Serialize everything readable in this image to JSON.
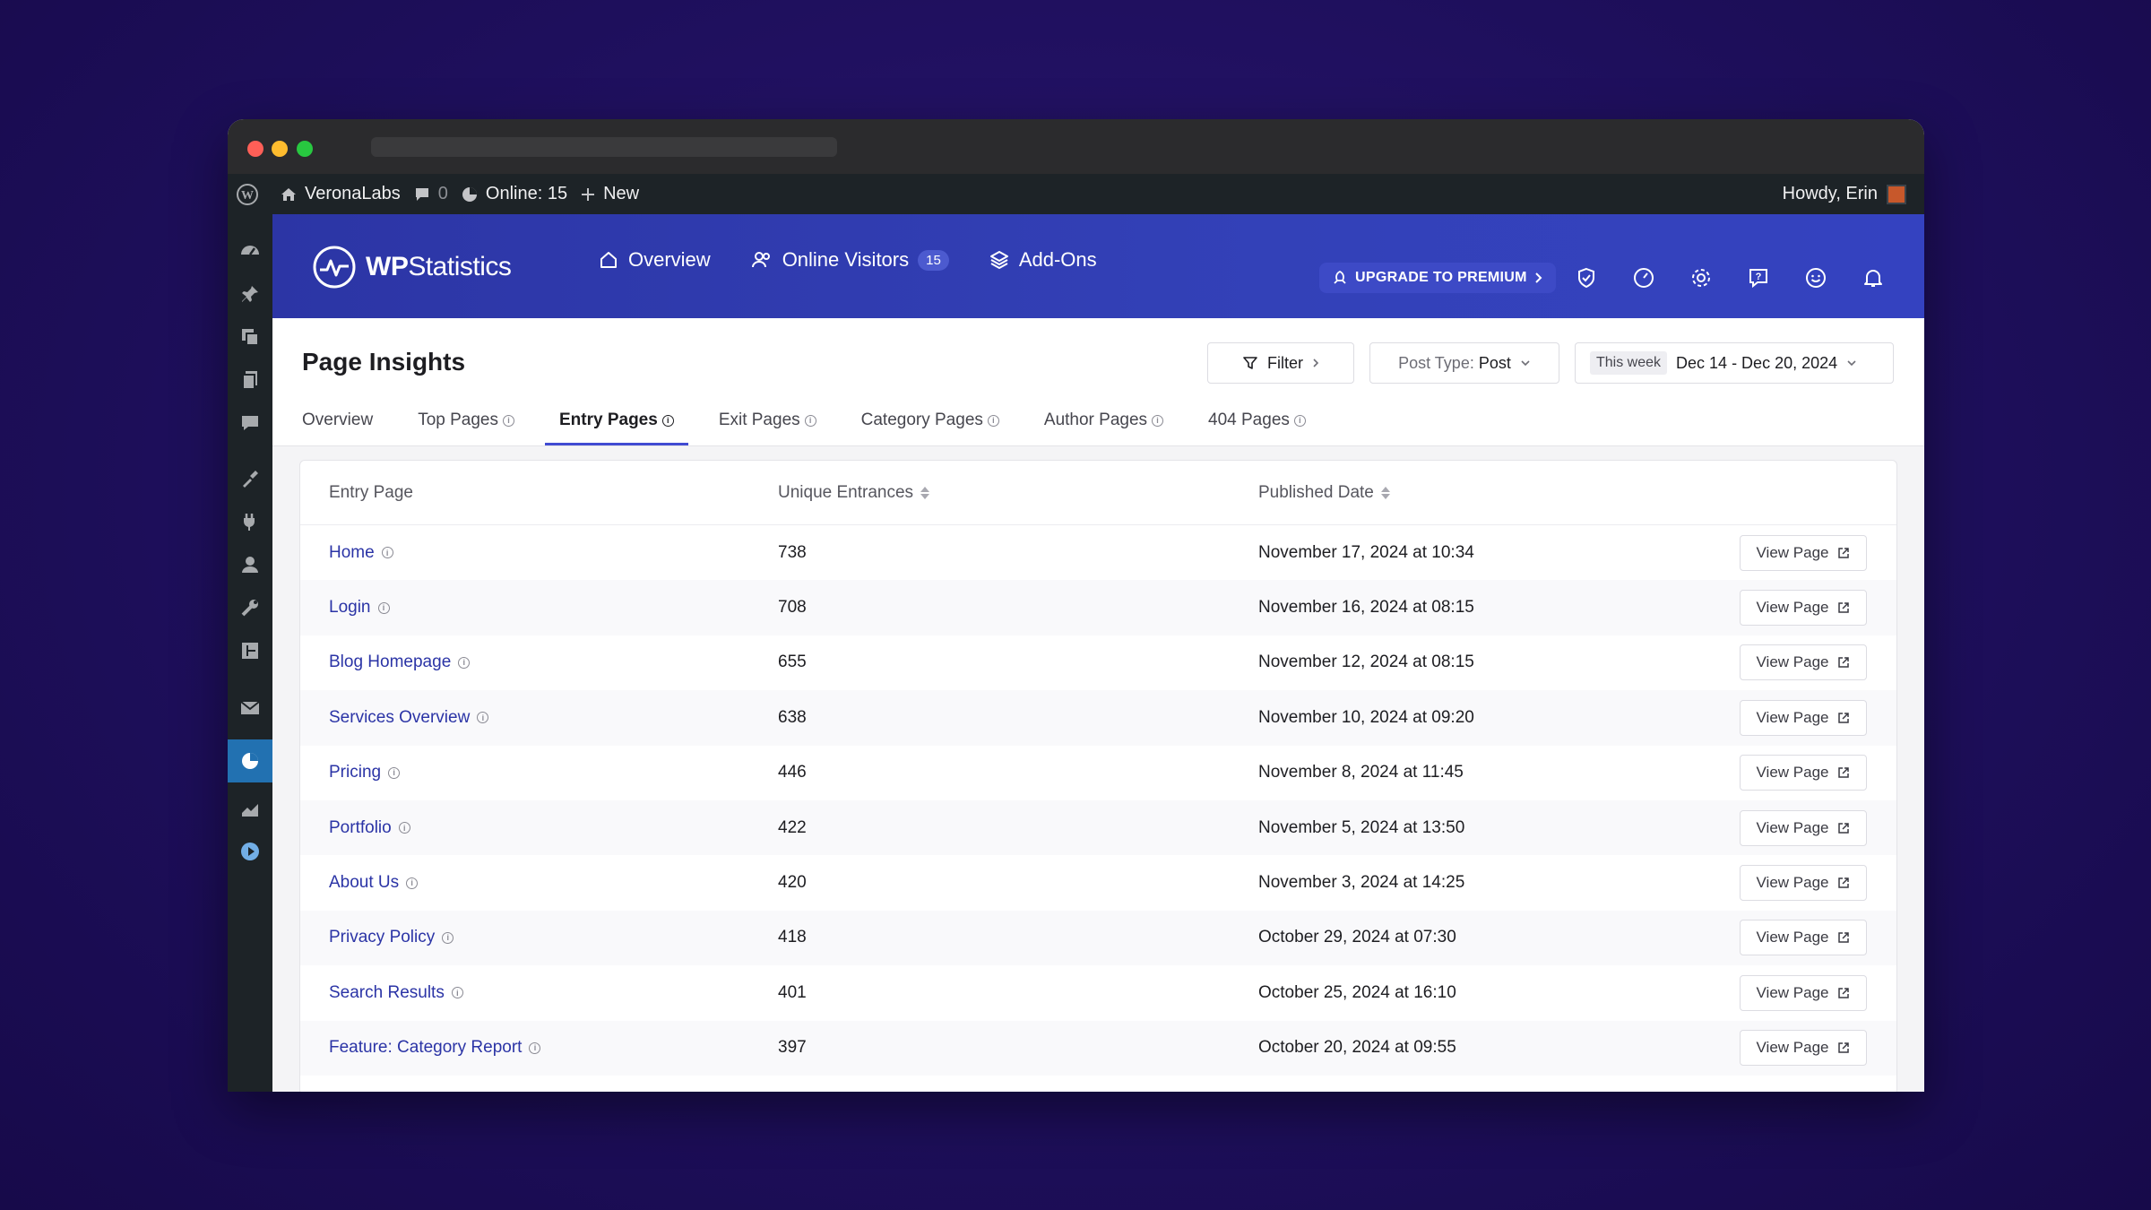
{
  "admin_bar": {
    "site_name": "VeronaLabs",
    "comments_count": "0",
    "online": "Online: 15",
    "new_label": "New",
    "greeting": "Howdy, Erin"
  },
  "header": {
    "logo_bold": "WP",
    "logo_rest": "Statistics",
    "nav": [
      {
        "label": "Overview"
      },
      {
        "label": "Online Visitors",
        "badge": "15"
      },
      {
        "label": "Add-Ons"
      }
    ],
    "upgrade_label": "UPGRADE TO PREMIUM"
  },
  "page": {
    "title": "Page Insights",
    "filter_label": "Filter",
    "post_type_label": "Post Type:",
    "post_type_value": "Post",
    "date_chip": "This week",
    "date_range": "Dec 14 - Dec 20, 2024",
    "tabs": [
      {
        "label": "Overview",
        "info": false
      },
      {
        "label": "Top Pages",
        "info": true
      },
      {
        "label": "Entry Pages",
        "info": true,
        "active": true
      },
      {
        "label": "Exit Pages",
        "info": true
      },
      {
        "label": "Category Pages",
        "info": true
      },
      {
        "label": "Author Pages",
        "info": true
      },
      {
        "label": "404 Pages",
        "info": true
      }
    ]
  },
  "table": {
    "headers": {
      "page": "Entry Page",
      "entrances": "Unique Entrances",
      "published": "Published Date"
    },
    "view_label": "View Page",
    "rows": [
      {
        "page": "Home",
        "entrances": "738",
        "published": "November 17, 2024 at 10:34"
      },
      {
        "page": "Login",
        "entrances": "708",
        "published": "November 16, 2024 at 08:15"
      },
      {
        "page": "Blog Homepage",
        "entrances": "655",
        "published": "November 12, 2024 at 08:15"
      },
      {
        "page": "Services Overview",
        "entrances": "638",
        "published": "November 10, 2024 at 09:20"
      },
      {
        "page": "Pricing",
        "entrances": "446",
        "published": "November 8, 2024 at 11:45"
      },
      {
        "page": "Portfolio",
        "entrances": "422",
        "published": "November 5, 2024 at 13:50"
      },
      {
        "page": "About Us",
        "entrances": "420",
        "published": "November 3, 2024 at 14:25"
      },
      {
        "page": "Privacy Policy",
        "entrances": "418",
        "published": "October 29, 2024 at 07:30"
      },
      {
        "page": "Search Results",
        "entrances": "401",
        "published": "October 25, 2024 at 16:10"
      },
      {
        "page": "Feature: Category Report",
        "entrances": "397",
        "published": "October 20, 2024 at 09:55"
      }
    ]
  },
  "colors": {
    "brand": "#3341b8",
    "link": "#2b34a6",
    "admin_bg": "#1d2327",
    "active_menu": "#2271b1"
  }
}
